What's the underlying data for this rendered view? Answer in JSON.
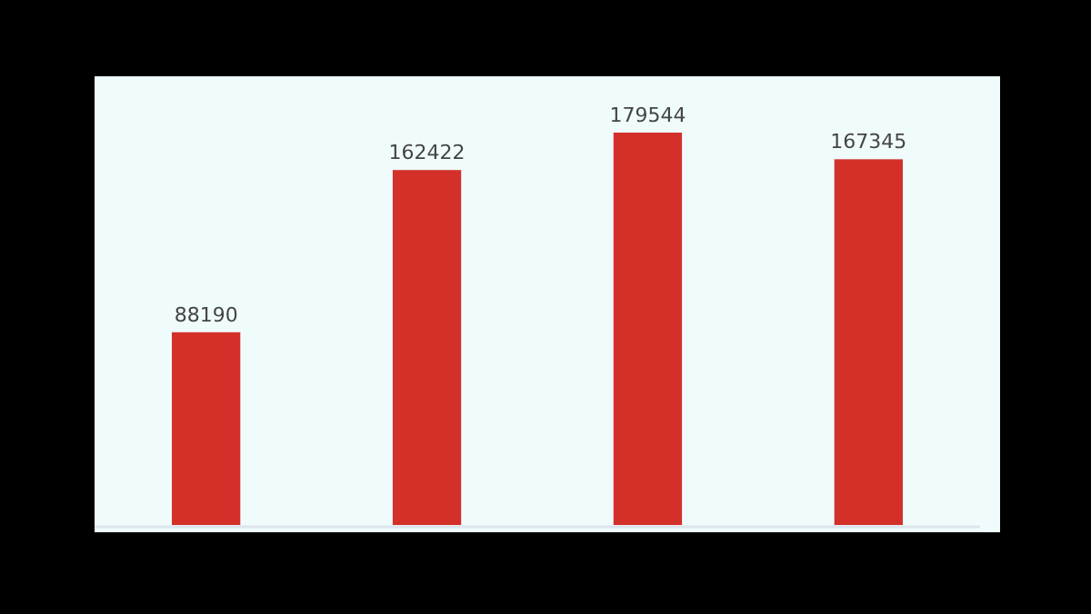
{
  "chart_data": {
    "type": "bar",
    "categories": [
      null,
      null,
      null,
      null
    ],
    "values": [
      88190,
      162422,
      179544,
      167345
    ],
    "color": "#d3302a",
    "data_labels": true
  }
}
